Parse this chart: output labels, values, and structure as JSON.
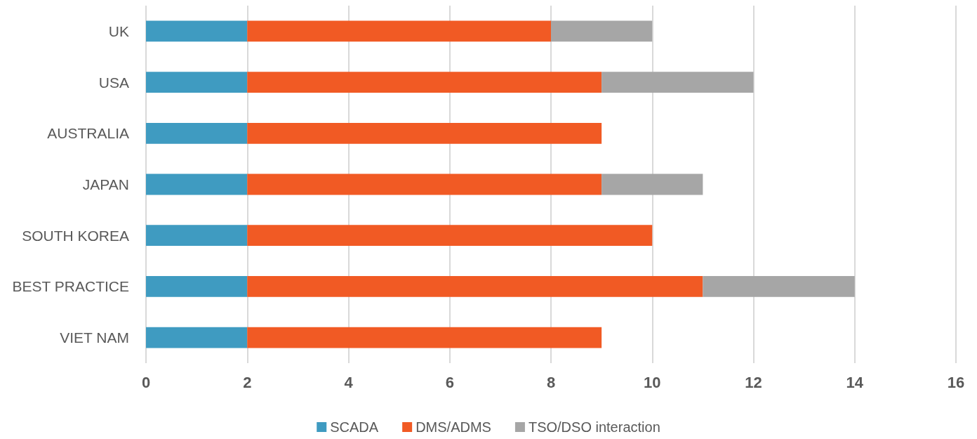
{
  "chart_data": {
    "type": "bar",
    "orientation": "horizontal",
    "stacked": true,
    "categories": [
      "UK",
      "USA",
      "AUSTRALIA",
      "JAPAN",
      "SOUTH KOREA",
      "BEST PRACTICE",
      "VIET NAM"
    ],
    "series": [
      {
        "name": "SCADA",
        "color": "#3f9bc1",
        "values": [
          2,
          2,
          2,
          2,
          2,
          2,
          2
        ]
      },
      {
        "name": "DMS/ADMS",
        "color": "#f15a24",
        "values": [
          6,
          7,
          7,
          7,
          8,
          9,
          7
        ]
      },
      {
        "name": "TSO/DSO interaction",
        "color": "#a6a6a6",
        "values": [
          2,
          3,
          null,
          2,
          null,
          3,
          null
        ]
      }
    ],
    "xlim": [
      0,
      16
    ],
    "xticks": [
      0,
      2,
      4,
      6,
      8,
      10,
      12,
      14,
      16
    ],
    "grid": "x",
    "legend": "bottom"
  }
}
